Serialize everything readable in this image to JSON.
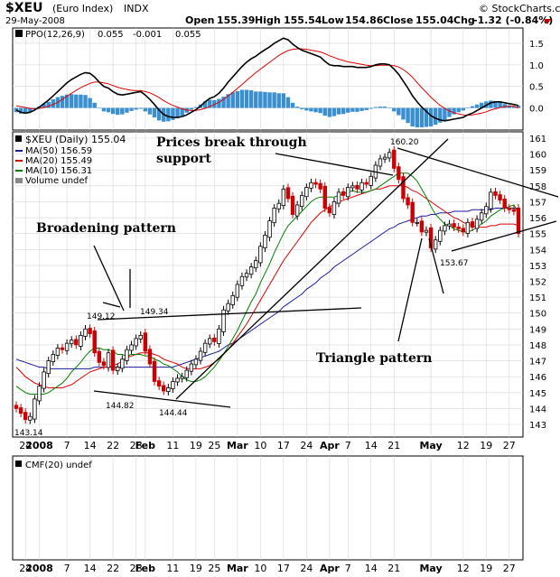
{
  "header": {
    "symbol": "$XEU",
    "name": "(Euro Index)",
    "exchange": "INDX",
    "date": "29-May-2008",
    "open_label": "Open",
    "open": "155.39",
    "high_label": "High",
    "high": "155.54",
    "low_label": "Low",
    "low": "154.86",
    "close_label": "Close",
    "close": "155.04",
    "chg_label": "Chg",
    "chg": "-1.32 (-0.84%)",
    "brand": "© StockCharts.com"
  },
  "colors": {
    "price_up": "#000000",
    "price_down": "#cc0000",
    "ma50": "#1a1aa0",
    "ma20": "#e00000",
    "ma10": "#008000",
    "ppo": "#000000",
    "ppo_signal": "#e00000",
    "histogram": "#3a8fd0",
    "grid": "#d8d8d8"
  },
  "ppo_panel": {
    "title_prefix": "PPO(12,26,9)",
    "ppo_value": "0.055",
    "signal_value": "-0.001",
    "hist_value": "0.055",
    "ticks": [
      "1.5",
      "1.0",
      "0.5",
      "0.0"
    ]
  },
  "price_legend": {
    "main": "$XEU (Daily) 155.04",
    "ma50": "MA(50) 156.59",
    "ma20": "MA(20) 155.49",
    "ma10": "MA(10) 156.31",
    "volume": "Volume undef"
  },
  "price_ticks": [
    "161",
    "160",
    "159",
    "158",
    "157",
    "156",
    "155",
    "154",
    "153",
    "152",
    "151",
    "150",
    "149",
    "148",
    "147",
    "146",
    "145",
    "144",
    "143"
  ],
  "x_labels": [
    "24",
    "2008",
    "7",
    "14",
    "22",
    "28",
    "Feb",
    "11",
    "19",
    "25",
    "Mar",
    "10",
    "17",
    "24",
    "Apr",
    "7",
    "14",
    "21",
    "May",
    "12",
    "19",
    "27"
  ],
  "cmf_panel": {
    "title": "CMF(20) undef"
  },
  "annotations": {
    "broadening": "Broadening pattern",
    "break_line1": "Prices break through",
    "break_line2": "support",
    "triangle": "Triangle pattern"
  },
  "value_labels": [
    "149.12",
    "149.34",
    "144.82",
    "144.44",
    "143.14",
    "160.20",
    "153.67"
  ],
  "chart_data": [
    {
      "type": "candlestick",
      "title": "$XEU (Daily) 155.04",
      "ylim": [
        142.5,
        161.5
      ],
      "x": [
        "Dec 20",
        "Dec 21",
        "Dec 24",
        "Dec 26",
        "Dec 27",
        "Dec 28",
        "Dec 31",
        "Jan 2",
        "Jan 3",
        "Jan 4",
        "Jan 7",
        "Jan 8",
        "Jan 9",
        "Jan 10",
        "Jan 11",
        "Jan 14",
        "Jan 15",
        "Jan 16",
        "Jan 17",
        "Jan 18",
        "Jan 22",
        "Jan 23",
        "Jan 24",
        "Jan 25",
        "Jan 28",
        "Jan 29",
        "Jan 30",
        "Jan 31",
        "Feb 1",
        "Feb 4",
        "Feb 5",
        "Feb 6",
        "Feb 7",
        "Feb 8",
        "Feb 11",
        "Feb 12",
        "Feb 13",
        "Feb 14",
        "Feb 15",
        "Feb 19",
        "Feb 20",
        "Feb 21",
        "Feb 22",
        "Feb 25",
        "Feb 26",
        "Feb 27",
        "Feb 28",
        "Feb 29",
        "Mar 3",
        "Mar 4",
        "Mar 5",
        "Mar 6",
        "Mar 7",
        "Mar 10",
        "Mar 11",
        "Mar 12",
        "Mar 13",
        "Mar 14",
        "Mar 17",
        "Mar 18",
        "Mar 19",
        "Mar 20",
        "Mar 24",
        "Mar 25",
        "Mar 26",
        "Mar 27",
        "Mar 28",
        "Mar 31",
        "Apr 1",
        "Apr 2",
        "Apr 3",
        "Apr 4",
        "Apr 7",
        "Apr 8",
        "Apr 9",
        "Apr 10",
        "Apr 11",
        "Apr 14",
        "Apr 15",
        "Apr 16",
        "Apr 17",
        "Apr 18",
        "Apr 21",
        "Apr 22",
        "Apr 23",
        "Apr 24",
        "Apr 25",
        "Apr 28",
        "Apr 29",
        "Apr 30",
        "May 1",
        "May 2",
        "May 5",
        "May 6",
        "May 7",
        "May 8",
        "May 9",
        "May 12",
        "May 13",
        "May 14",
        "May 15",
        "May 16",
        "May 19",
        "May 20",
        "May 21",
        "May 22",
        "May 23",
        "May 27",
        "May 28",
        "May 29"
      ],
      "series": [
        {
          "name": "$XEU",
          "close": [
            144.0,
            143.7,
            143.3,
            143.5,
            144.6,
            145.4,
            146.3,
            147.0,
            147.4,
            147.8,
            147.7,
            148.1,
            148.3,
            148.0,
            148.6,
            149.0,
            148.7,
            147.5,
            146.9,
            146.7,
            147.5,
            146.4,
            146.6,
            147.1,
            147.7,
            148.0,
            148.4,
            148.6,
            147.6,
            146.8,
            145.7,
            145.4,
            145.1,
            145.3,
            145.7,
            145.9,
            146.0,
            146.4,
            146.8,
            147.1,
            147.6,
            148.1,
            148.4,
            148.2,
            149.0,
            150.2,
            150.6,
            151.1,
            151.8,
            152.3,
            152.5,
            152.9,
            153.3,
            154.2,
            154.9,
            155.8,
            156.6,
            156.9,
            157.8,
            157.2,
            156.2,
            156.8,
            157.4,
            157.9,
            158.2,
            158.1,
            157.8,
            156.6,
            156.3,
            157.0,
            157.6,
            157.4,
            157.9,
            158.0,
            157.8,
            158.2,
            158.1,
            158.6,
            159.3,
            159.7,
            159.8,
            160.1,
            159.1,
            158.4,
            157.2,
            156.8,
            155.7,
            155.7,
            155.1,
            155.2,
            154.1,
            154.6,
            155.2,
            155.5,
            155.6,
            155.4,
            155.3,
            155.1,
            155.7,
            155.4,
            155.9,
            156.3,
            156.7,
            157.6,
            157.4,
            157.1,
            156.6,
            156.5,
            156.4,
            155.0
          ]
        },
        {
          "name": "MA(10)",
          "values": [
            145.4,
            145.2,
            145.0,
            144.9,
            144.9,
            144.9,
            144.9,
            145.0,
            145.2,
            145.4,
            145.6,
            145.9,
            146.3,
            146.6,
            146.9,
            147.3,
            147.6,
            147.8,
            147.8,
            147.7,
            147.7,
            147.6,
            147.4,
            147.4,
            147.3,
            147.4,
            147.4,
            147.4,
            147.3,
            147.3,
            147.1,
            147.0,
            146.8,
            146.7,
            146.5,
            146.3,
            146.0,
            145.8,
            145.7,
            145.7,
            145.8,
            146.0,
            146.3,
            146.6,
            147.0,
            147.4,
            147.9,
            148.4,
            148.9,
            149.5,
            150.1,
            150.7,
            151.2,
            151.9,
            152.5,
            153.1,
            153.8,
            154.4,
            155.0,
            155.5,
            155.8,
            156.1,
            156.4,
            156.7,
            157.0,
            157.2,
            157.3,
            157.3,
            157.3,
            157.3,
            157.4,
            157.5,
            157.6,
            157.7,
            157.6,
            157.6,
            157.6,
            157.7,
            157.8,
            158.0,
            158.2,
            158.4,
            158.6,
            158.8,
            158.8,
            158.8,
            158.6,
            158.3,
            157.8,
            157.3,
            156.7,
            156.2,
            155.9,
            155.6,
            155.5,
            155.3,
            155.2,
            155.1,
            155.1,
            155.2,
            155.4,
            155.6,
            155.8,
            156.1,
            156.3,
            156.5,
            156.6,
            156.7,
            156.8,
            156.3
          ]
        },
        {
          "name": "MA(20)",
          "values": [
            146.6,
            146.3,
            146.0,
            145.8,
            145.6,
            145.5,
            145.4,
            145.3,
            145.3,
            145.3,
            145.3,
            145.4,
            145.5,
            145.7,
            145.9,
            146.1,
            146.3,
            146.4,
            146.5,
            146.6,
            146.6,
            146.7,
            146.8,
            147.0,
            147.2,
            147.3,
            147.4,
            147.5,
            147.5,
            147.5,
            147.4,
            147.3,
            147.1,
            147.0,
            146.9,
            146.8,
            146.6,
            146.5,
            146.5,
            146.5,
            146.5,
            146.6,
            146.7,
            146.9,
            147.1,
            147.4,
            147.7,
            148.1,
            148.5,
            148.9,
            149.3,
            149.8,
            150.3,
            150.8,
            151.3,
            151.8,
            152.3,
            152.8,
            153.3,
            153.7,
            154.1,
            154.5,
            154.9,
            155.3,
            155.7,
            156.0,
            156.3,
            156.5,
            156.7,
            156.8,
            157.0,
            157.1,
            157.2,
            157.3,
            157.4,
            157.5,
            157.6,
            157.7,
            157.8,
            157.8,
            157.9,
            158.0,
            158.0,
            158.0,
            158.0,
            157.9,
            157.7,
            157.6,
            157.4,
            157.2,
            157.0,
            156.8,
            156.6,
            156.4,
            156.2,
            156.0,
            155.9,
            155.7,
            155.6,
            155.5,
            155.4,
            155.4,
            155.4,
            155.5,
            155.5,
            155.6,
            155.6,
            155.6,
            155.6,
            155.5
          ]
        },
        {
          "name": "MA(50)",
          "values": [
            147.1,
            147.0,
            146.9,
            146.8,
            146.7,
            146.6,
            146.6,
            146.5,
            146.5,
            146.5,
            146.5,
            146.5,
            146.5,
            146.5,
            146.5,
            146.5,
            146.5,
            146.6,
            146.6,
            146.6,
            146.6,
            146.6,
            146.6,
            146.6,
            146.6,
            146.6,
            146.6,
            146.6,
            146.6,
            146.6,
            146.6,
            146.6,
            146.6,
            146.6,
            146.6,
            146.7,
            146.8,
            146.9,
            147.0,
            147.1,
            147.2,
            147.3,
            147.4,
            147.5,
            147.6,
            147.8,
            148.0,
            148.1,
            148.3,
            148.5,
            148.7,
            148.9,
            149.1,
            149.3,
            149.5,
            149.7,
            149.9,
            150.1,
            150.4,
            150.6,
            150.8,
            151.0,
            151.2,
            151.5,
            151.7,
            151.9,
            152.2,
            152.4,
            152.6,
            152.9,
            153.1,
            153.3,
            153.5,
            153.7,
            153.9,
            154.1,
            154.3,
            154.5,
            154.7,
            154.9,
            155.1,
            155.3,
            155.4,
            155.6,
            155.7,
            155.8,
            155.9,
            156.0,
            156.1,
            156.1,
            156.2,
            156.2,
            156.3,
            156.3,
            156.3,
            156.4,
            156.4,
            156.4,
            156.4,
            156.5,
            156.5,
            156.5,
            156.5,
            156.5,
            156.6,
            156.6,
            156.6,
            156.6,
            156.6,
            156.6
          ]
        }
      ]
    },
    {
      "type": "line",
      "title": "PPO(12,26,9)",
      "ylim": [
        -0.45,
        1.75
      ],
      "series": [
        {
          "name": "PPO",
          "values": [
            -0.05,
            -0.1,
            -0.12,
            -0.1,
            -0.05,
            0.02,
            0.1,
            0.18,
            0.28,
            0.38,
            0.48,
            0.58,
            0.66,
            0.72,
            0.78,
            0.82,
            0.8,
            0.72,
            0.6,
            0.5,
            0.46,
            0.38,
            0.32,
            0.3,
            0.32,
            0.34,
            0.36,
            0.38,
            0.3,
            0.2,
            0.08,
            -0.05,
            -0.15,
            -0.2,
            -0.22,
            -0.22,
            -0.2,
            -0.16,
            -0.1,
            -0.04,
            0.04,
            0.14,
            0.22,
            0.26,
            0.34,
            0.46,
            0.6,
            0.72,
            0.84,
            0.96,
            1.06,
            1.14,
            1.2,
            1.28,
            1.35,
            1.42,
            1.5,
            1.56,
            1.62,
            1.58,
            1.48,
            1.4,
            1.34,
            1.3,
            1.26,
            1.22,
            1.18,
            1.08,
            1.0,
            0.98,
            0.98,
            0.96,
            0.96,
            0.96,
            0.94,
            0.94,
            0.94,
            0.96,
            1.0,
            1.02,
            1.02,
            1.0,
            0.9,
            0.78,
            0.62,
            0.46,
            0.28,
            0.14,
            0.02,
            -0.08,
            -0.18,
            -0.24,
            -0.28,
            -0.3,
            -0.28,
            -0.26,
            -0.24,
            -0.22,
            -0.16,
            -0.12,
            -0.06,
            0.0,
            0.06,
            0.12,
            0.14,
            0.14,
            0.12,
            0.1,
            0.08,
            0.055
          ]
        },
        {
          "name": "Signal",
          "values": [
            0.05,
            0.03,
            0.01,
            -0.01,
            -0.02,
            -0.01,
            0.01,
            0.04,
            0.08,
            0.13,
            0.2,
            0.27,
            0.34,
            0.41,
            0.47,
            0.52,
            0.57,
            0.6,
            0.6,
            0.58,
            0.56,
            0.52,
            0.48,
            0.45,
            0.43,
            0.41,
            0.4,
            0.4,
            0.38,
            0.35,
            0.3,
            0.24,
            0.17,
            0.11,
            0.06,
            0.02,
            -0.02,
            -0.05,
            -0.06,
            -0.06,
            -0.04,
            -0.01,
            0.03,
            0.08,
            0.13,
            0.2,
            0.28,
            0.36,
            0.45,
            0.54,
            0.64,
            0.73,
            0.82,
            0.9,
            0.98,
            1.06,
            1.14,
            1.22,
            1.28,
            1.33,
            1.36,
            1.37,
            1.37,
            1.36,
            1.34,
            1.32,
            1.3,
            1.26,
            1.21,
            1.17,
            1.13,
            1.1,
            1.07,
            1.05,
            1.03,
            1.01,
            0.99,
            0.98,
            0.98,
            0.99,
            0.99,
            0.99,
            0.98,
            0.95,
            0.89,
            0.81,
            0.71,
            0.59,
            0.47,
            0.36,
            0.25,
            0.15,
            0.06,
            -0.01,
            -0.07,
            -0.11,
            -0.14,
            -0.16,
            -0.17,
            -0.16,
            -0.14,
            -0.12,
            -0.09,
            -0.05,
            -0.02,
            0.01,
            0.03,
            0.04,
            0.04,
            -0.001
          ]
        },
        {
          "name": "Histogram",
          "values": [
            -0.1,
            -0.13,
            -0.13,
            -0.09,
            -0.03,
            0.03,
            0.09,
            0.14,
            0.2,
            0.25,
            0.28,
            0.31,
            0.32,
            0.31,
            0.31,
            0.3,
            0.23,
            0.12,
            0.0,
            -0.08,
            -0.1,
            -0.14,
            -0.16,
            -0.15,
            -0.11,
            -0.07,
            -0.04,
            -0.02,
            -0.08,
            -0.15,
            -0.22,
            -0.29,
            -0.32,
            -0.31,
            -0.28,
            -0.24,
            -0.18,
            -0.11,
            -0.04,
            0.02,
            0.08,
            0.15,
            0.19,
            0.18,
            0.21,
            0.26,
            0.32,
            0.36,
            0.39,
            0.42,
            0.42,
            0.41,
            0.38,
            0.38,
            0.37,
            0.36,
            0.36,
            0.34,
            0.34,
            0.25,
            0.12,
            0.03,
            -0.03,
            -0.06,
            -0.08,
            -0.1,
            -0.12,
            -0.18,
            -0.21,
            -0.19,
            -0.15,
            -0.14,
            -0.11,
            -0.09,
            -0.09,
            -0.07,
            -0.05,
            -0.02,
            0.02,
            0.03,
            0.03,
            0.01,
            -0.08,
            -0.17,
            -0.27,
            -0.35,
            -0.43,
            -0.45,
            -0.45,
            -0.44,
            -0.43,
            -0.39,
            -0.34,
            -0.29,
            -0.21,
            -0.15,
            -0.1,
            -0.06,
            0.01,
            0.04,
            0.08,
            0.12,
            0.15,
            0.17,
            0.16,
            0.13,
            0.09,
            0.06,
            0.04,
            0.055
          ]
        }
      ]
    }
  ]
}
